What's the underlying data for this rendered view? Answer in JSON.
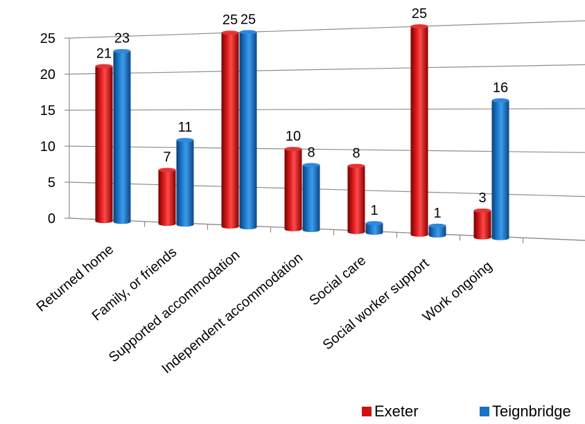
{
  "chart_data": {
    "type": "bar",
    "categories": [
      "Returned home",
      "Family, or friends",
      "Supported accommodation",
      "Independent accommodation",
      "Social care",
      "Social worker support",
      "Work ongoing"
    ],
    "series": [
      {
        "name": "Exeter",
        "values": [
          21,
          7,
          25,
          10,
          8,
          25,
          3
        ],
        "color": "#d01010"
      },
      {
        "name": "Teignbridge",
        "values": [
          23,
          11,
          25,
          8,
          1,
          1,
          16
        ],
        "color": "#1a72c4"
      }
    ],
    "yticks": [
      0,
      5,
      10,
      15,
      20,
      25
    ],
    "ylim": [
      0,
      25
    ],
    "grid": true,
    "legend_position": "bottom-right",
    "style": "3d-cylinder"
  }
}
